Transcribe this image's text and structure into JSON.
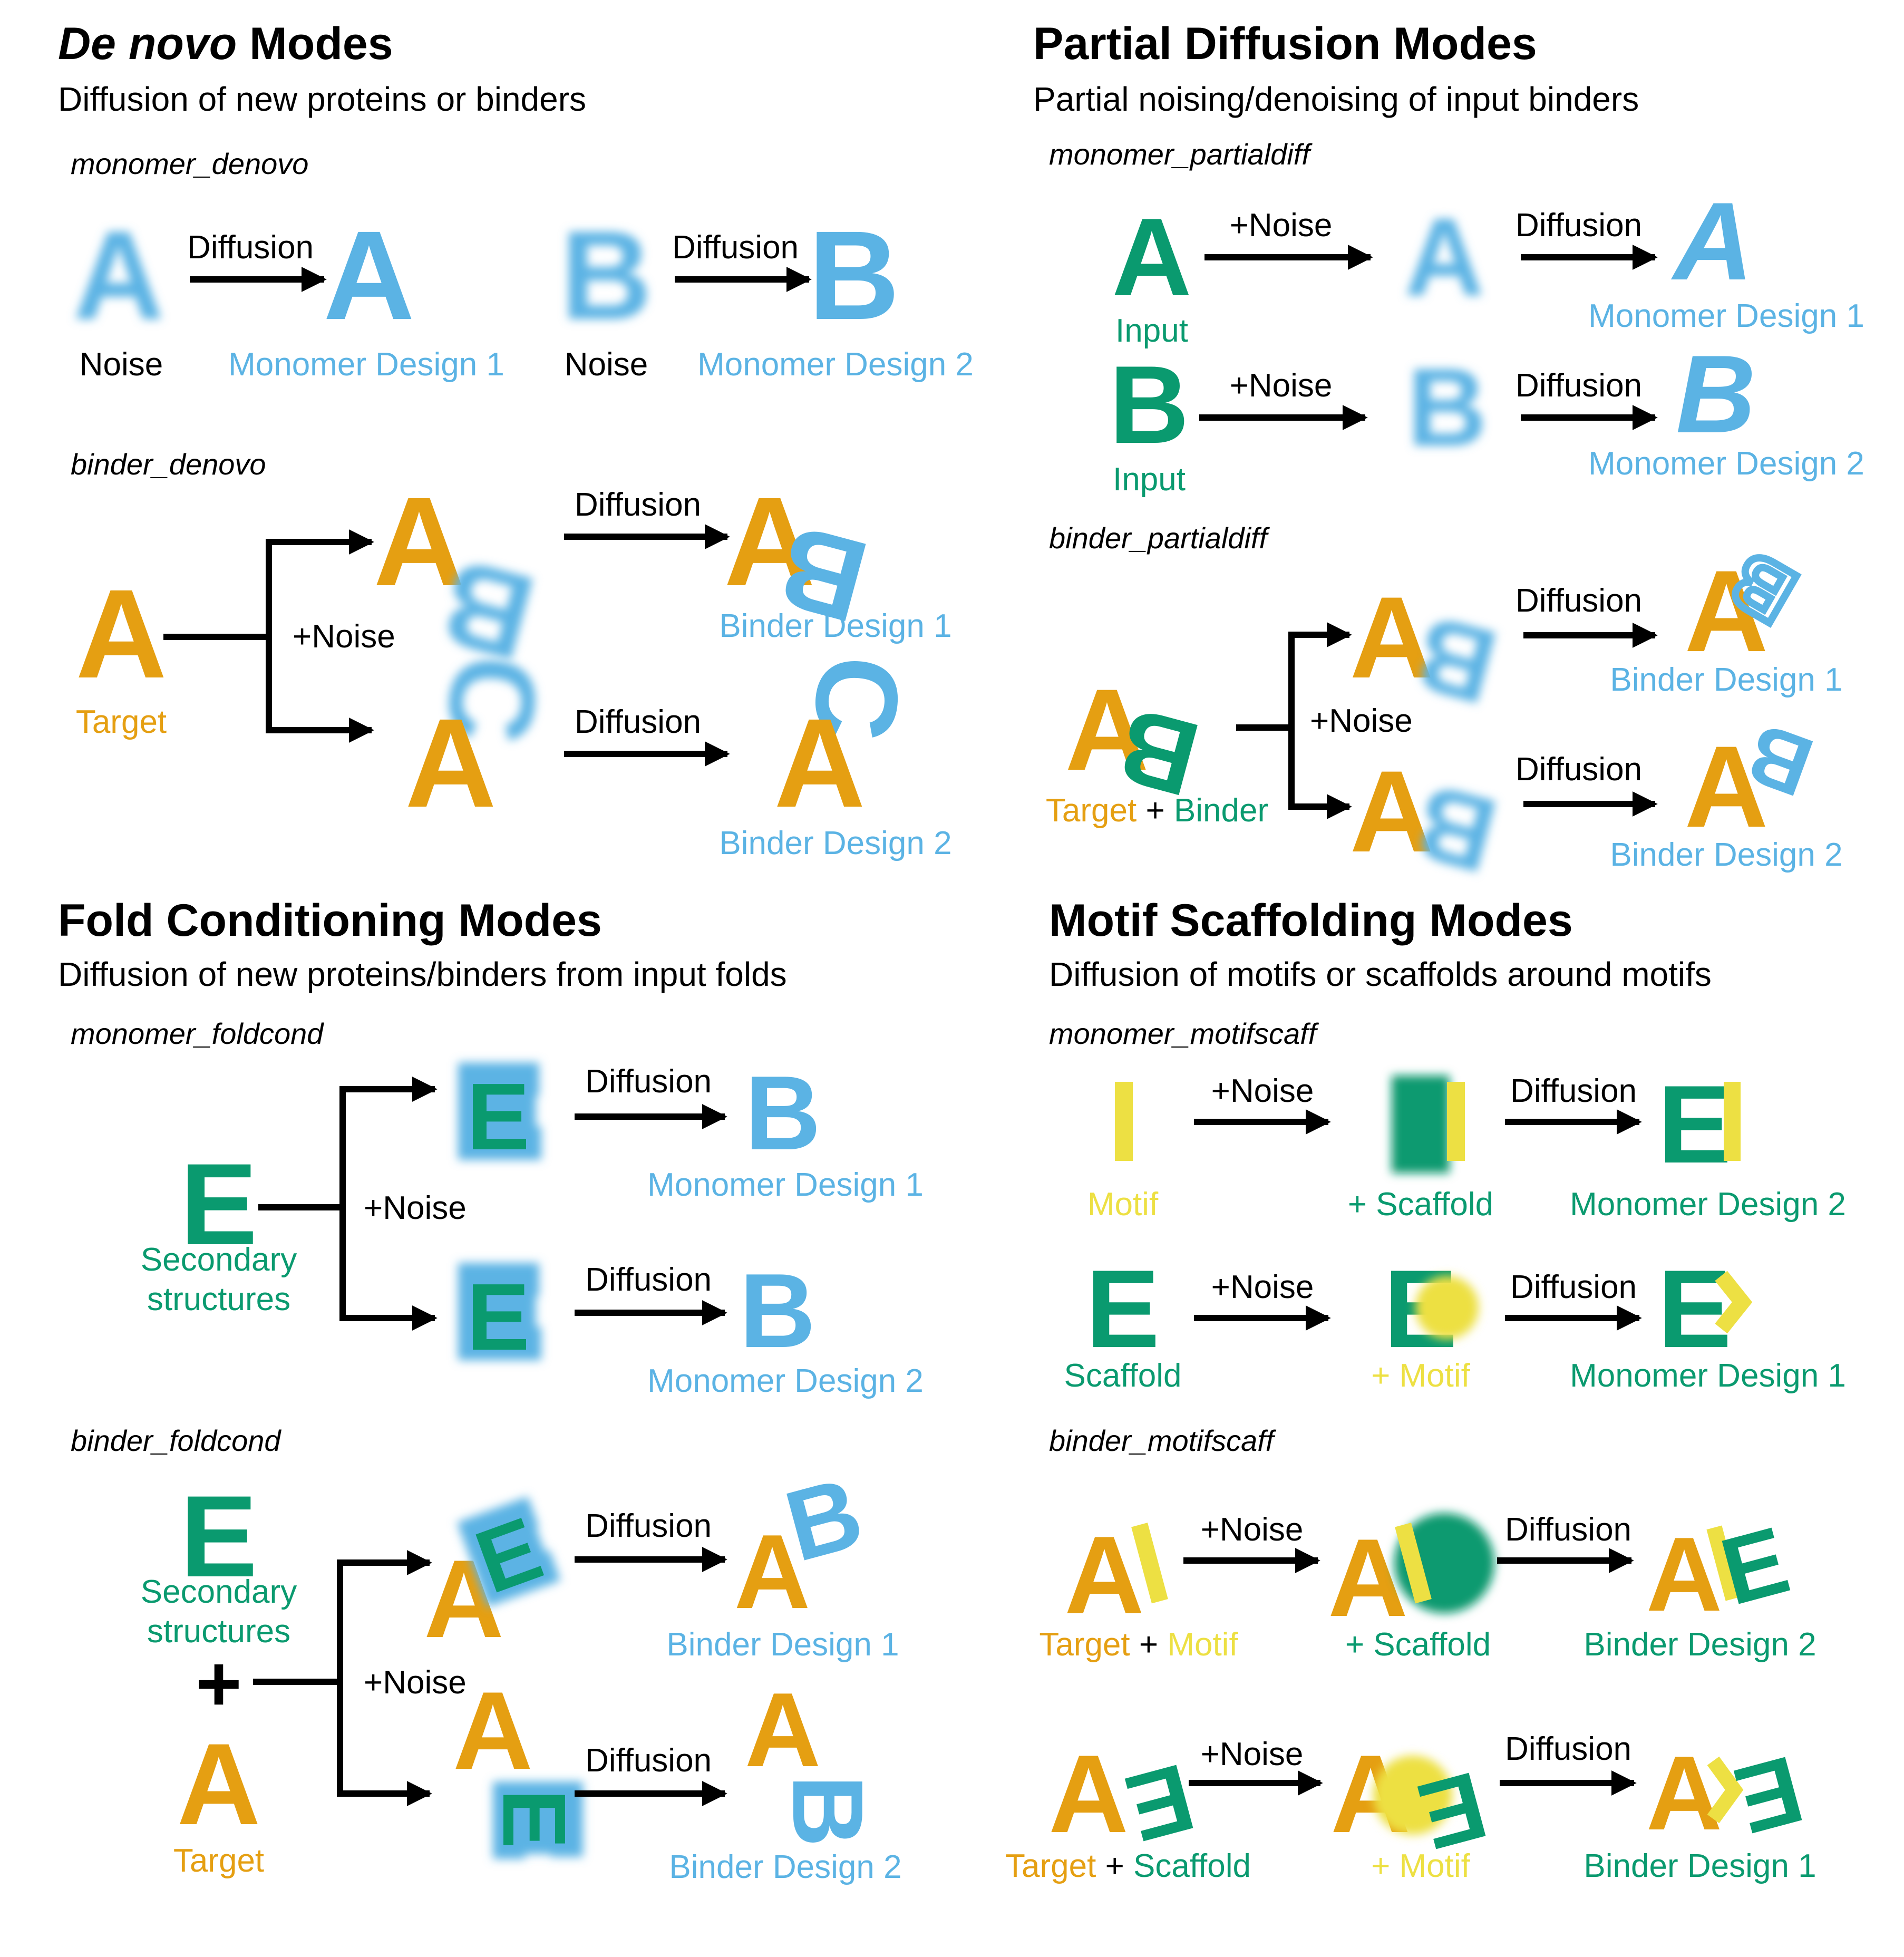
{
  "colors": {
    "blue": "#5BB3E4",
    "orange": "#E59F12",
    "green": "#0A9A6F",
    "yellow": "#EDE043",
    "black": "#000000"
  },
  "panels": {
    "denovo": {
      "title_italic": "De novo",
      "title_rest": " Modes",
      "subtitle": "Diffusion of new proteins or binders",
      "monomer_label": "monomer_denovo",
      "binder_label": "binder_denovo",
      "noise": "Noise",
      "diffusion": "Diffusion",
      "plus_noise": "+Noise",
      "monomer_design_1": "Monomer Design 1",
      "monomer_design_2": "Monomer Design 2",
      "target": "Target",
      "binder_design_1": "Binder Design 1",
      "binder_design_2": "Binder Design 2"
    },
    "partial": {
      "title": "Partial Diffusion Modes",
      "subtitle": "Partial noising/denoising of input binders",
      "monomer_label": "monomer_partialdiff",
      "binder_label": "binder_partialdiff",
      "input": "Input",
      "plus_noise": "+Noise",
      "diffusion": "Diffusion",
      "monomer_design_1": "Monomer Design 1",
      "monomer_design_2": "Monomer Design 2",
      "target": "Target",
      "plus": " + ",
      "binder": "Binder",
      "binder_design_1": "Binder Design 1",
      "binder_design_2": "Binder Design 2"
    },
    "fold": {
      "title": "Fold Conditioning Modes",
      "subtitle": "Diffusion of new proteins/binders from input folds",
      "monomer_label": "monomer_foldcond",
      "binder_label": "binder_foldcond",
      "secondary_1": "Secondary",
      "secondary_2": "structures",
      "plus_noise": "+Noise",
      "diffusion": "Diffusion",
      "monomer_design_1": "Monomer Design 1",
      "monomer_design_2": "Monomer Design 2",
      "plus_sign": "+",
      "target": "Target",
      "binder_design_1": "Binder Design 1",
      "binder_design_2": "Binder Design 2"
    },
    "motif": {
      "title": "Motif Scaffolding Modes",
      "subtitle": "Diffusion of motifs or scaffolds around motifs",
      "monomer_label": "monomer_motifscaff",
      "binder_label": "binder_motifscaff",
      "motif": "Motif",
      "plus_scaffold": "+ Scaffold",
      "plus_motif": "+ Motif",
      "scaffold": "Scaffold",
      "plus_noise": "+Noise",
      "diffusion": "Diffusion",
      "monomer_design_1": "Monomer Design 1",
      "monomer_design_2": "Monomer Design 2",
      "binder_design_1": "Binder Design 1",
      "binder_design_2": "Binder Design 2",
      "target": "Target",
      "plus": " + ",
      "motif_word": "Motif",
      "scaffold_word": "Scaffold"
    }
  },
  "glyphs": {
    "A": "A",
    "B": "B",
    "C": "C",
    "E": "E",
    "I": "I"
  }
}
